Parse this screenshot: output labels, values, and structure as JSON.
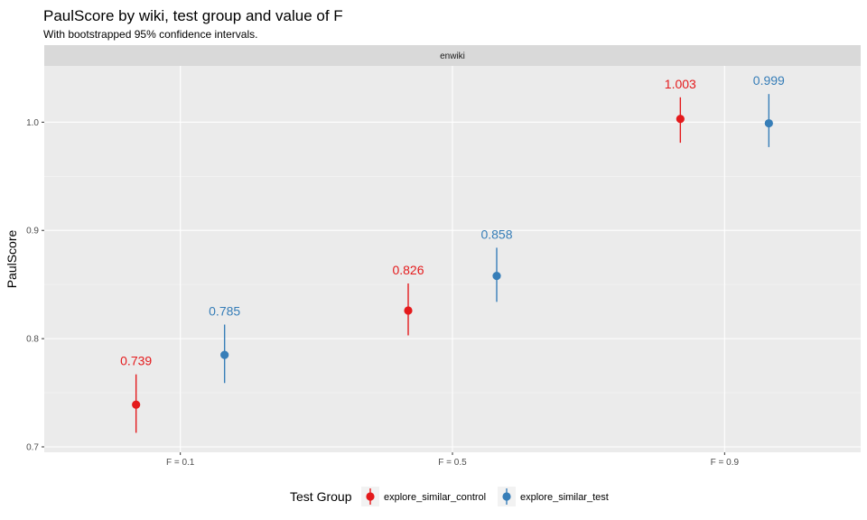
{
  "chart_data": {
    "type": "scatter",
    "title": "PaulScore by wiki, test group and value of F",
    "subtitle": "With bootstrapped 95% confidence intervals.",
    "facet": "enwiki",
    "categories": [
      "F = 0.1",
      "F = 0.5",
      "F = 0.9"
    ],
    "ylabel": "PaulScore",
    "xlabel": "",
    "ylim": [
      0.695,
      1.052
    ],
    "yticks": [
      0.7,
      0.8,
      0.9,
      1.0
    ],
    "ytick_labels": [
      "0.7",
      "0.8",
      "0.9",
      "1.0"
    ],
    "grid": true,
    "legend": {
      "title": "Test Group",
      "position": "bottom"
    },
    "series": [
      {
        "name": "explore_similar_control",
        "color": "#e41a1c",
        "values": [
          0.739,
          0.826,
          1.003
        ],
        "lower": [
          0.713,
          0.803,
          0.981
        ],
        "upper": [
          0.767,
          0.851,
          1.023
        ],
        "labels": [
          "0.739",
          "0.826",
          "1.003"
        ]
      },
      {
        "name": "explore_similar_test",
        "color": "#377eb8",
        "values": [
          0.785,
          0.858,
          0.999
        ],
        "lower": [
          0.759,
          0.834,
          0.977
        ],
        "upper": [
          0.813,
          0.884,
          1.026
        ],
        "labels": [
          "0.785",
          "0.858",
          "0.999"
        ]
      }
    ]
  }
}
